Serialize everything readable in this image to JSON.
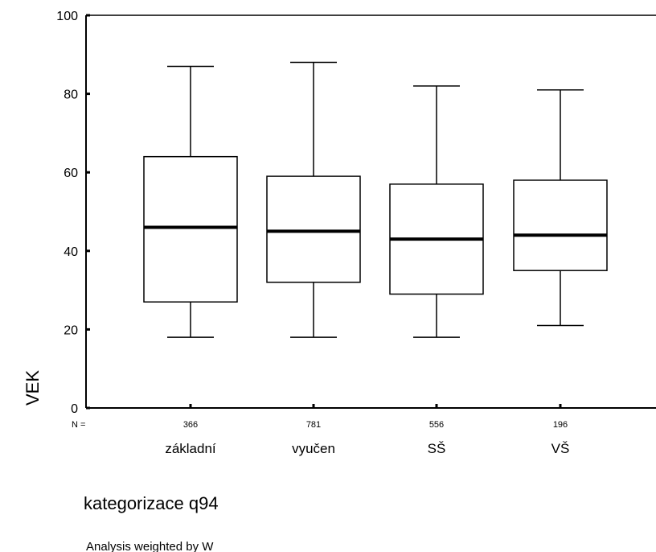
{
  "chart_data": {
    "type": "boxplot",
    "categories": [
      "základní",
      "vyučen",
      "SŠ",
      "VŠ"
    ],
    "n_label": "N =",
    "n": [
      "366",
      "781",
      "556",
      "196"
    ],
    "boxes": [
      {
        "whisker_low": 18,
        "q1": 27,
        "median": 46,
        "q3": 64,
        "whisker_high": 87
      },
      {
        "whisker_low": 18,
        "q1": 32,
        "median": 45,
        "q3": 59,
        "whisker_high": 88
      },
      {
        "whisker_low": 18,
        "q1": 29,
        "median": 43,
        "q3": 57,
        "whisker_high": 82
      },
      {
        "whisker_low": 21,
        "q1": 35,
        "median": 44,
        "q3": 58,
        "whisker_high": 81
      }
    ],
    "ylabel": "VEK",
    "xlabel": "kategorizace q94",
    "footnote": "Analysis weighted by W",
    "ylim": [
      0,
      100
    ],
    "yticks": [
      0,
      20,
      40,
      60,
      80,
      100
    ],
    "grid": false
  }
}
